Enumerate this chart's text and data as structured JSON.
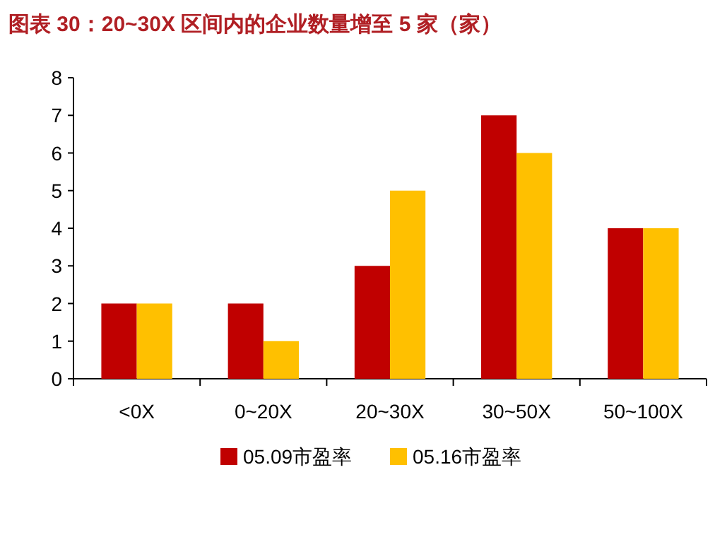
{
  "chart_data": {
    "type": "bar",
    "title": "图表 30：20~30X 区间内的企业数量增至 5 家（家）",
    "categories": [
      "<0X",
      "0~20X",
      "20~30X",
      "30~50X",
      "50~100X"
    ],
    "series": [
      {
        "name": "05.09市盈率",
        "color": "#c00000",
        "values": [
          2,
          2,
          3,
          7,
          4
        ]
      },
      {
        "name": "05.16市盈率",
        "color": "#ffc000",
        "values": [
          2,
          1,
          5,
          6,
          4
        ]
      }
    ],
    "ylim": [
      0,
      8
    ],
    "yticks": [
      0,
      1,
      2,
      3,
      4,
      5,
      6,
      7,
      8
    ],
    "legend": "bottom"
  }
}
